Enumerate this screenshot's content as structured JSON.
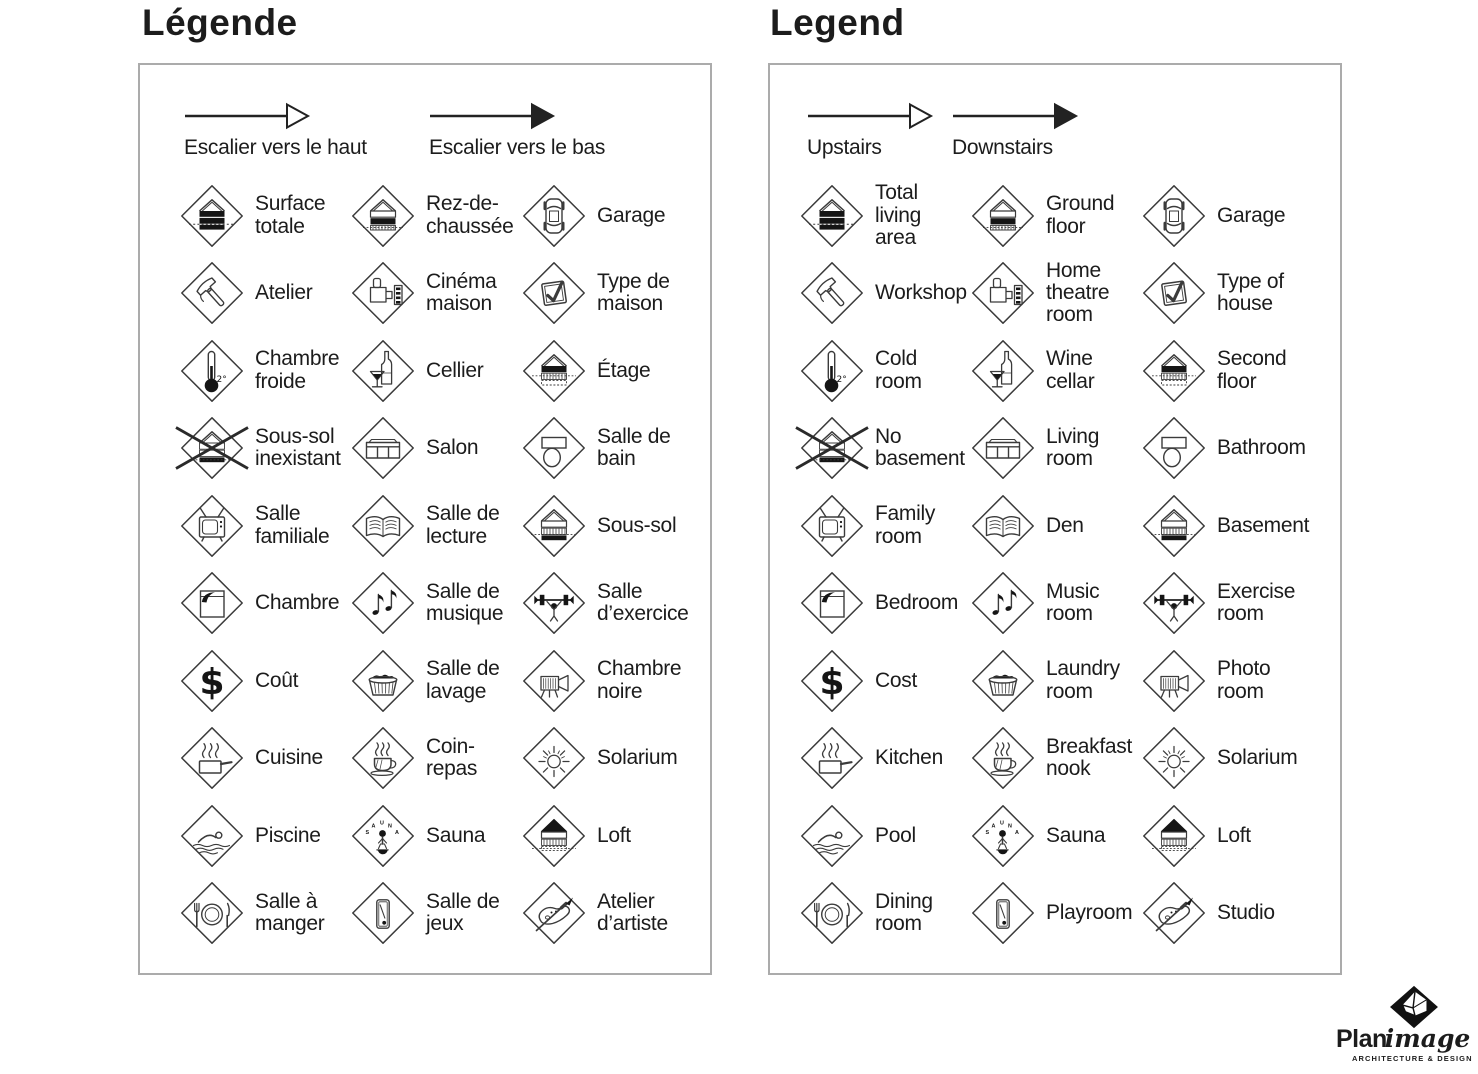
{
  "colors": {
    "ink": "#1c1c1c",
    "icon_stroke": "#3b3b3b",
    "icon_fill": "#151515",
    "panel_border": "#ababab",
    "background": "#ffffff"
  },
  "panels": [
    {
      "id": "legende",
      "title": "Légende",
      "arrows": [
        {
          "label": "Escalier vers le haut",
          "style": "open"
        },
        {
          "label": "Escalier vers le bas",
          "style": "solid"
        }
      ],
      "items": [
        {
          "icon": "total-area",
          "label": "Surface\ntotale"
        },
        {
          "icon": "ground-floor",
          "label": "Rez-de-\nchaussée"
        },
        {
          "icon": "garage",
          "label": "Garage"
        },
        {
          "icon": "workshop",
          "label": "Atelier"
        },
        {
          "icon": "home-theatre",
          "label": "Cinéma\nmaison"
        },
        {
          "icon": "house-type",
          "label": "Type de\nmaison"
        },
        {
          "icon": "cold-room",
          "label": "Chambre\nfroide"
        },
        {
          "icon": "wine-cellar",
          "label": "Cellier"
        },
        {
          "icon": "second-floor",
          "label": "Étage"
        },
        {
          "icon": "no-basement",
          "label": "Sous-sol\ninexistant"
        },
        {
          "icon": "living-room",
          "label": "Salon"
        },
        {
          "icon": "bathroom",
          "label": "Salle de\nbain"
        },
        {
          "icon": "family-room",
          "label": "Salle\nfamiliale"
        },
        {
          "icon": "den",
          "label": "Salle de\nlecture"
        },
        {
          "icon": "basement",
          "label": "Sous-sol"
        },
        {
          "icon": "bedroom",
          "label": "Chambre"
        },
        {
          "icon": "music-room",
          "label": "Salle de\nmusique"
        },
        {
          "icon": "exercise-room",
          "label": "Salle\nd’exercice"
        },
        {
          "icon": "cost",
          "label": "Coût"
        },
        {
          "icon": "laundry-room",
          "label": "Salle de\nlavage"
        },
        {
          "icon": "photo-room",
          "label": "Chambre\nnoire"
        },
        {
          "icon": "kitchen",
          "label": "Cuisine"
        },
        {
          "icon": "breakfast-nook",
          "label": "Coin-\nrepas"
        },
        {
          "icon": "solarium",
          "label": "Solarium"
        },
        {
          "icon": "pool",
          "label": "Piscine"
        },
        {
          "icon": "sauna",
          "label": "Sauna"
        },
        {
          "icon": "loft",
          "label": "Loft"
        },
        {
          "icon": "dining-room",
          "label": "Salle à\nmanger"
        },
        {
          "icon": "playroom",
          "label": "Salle de\njeux"
        },
        {
          "icon": "studio",
          "label": "Atelier\nd’artiste"
        }
      ]
    },
    {
      "id": "legend",
      "title": "Legend",
      "arrows": [
        {
          "label": "Upstairs",
          "style": "open"
        },
        {
          "label": "Downstairs",
          "style": "solid"
        }
      ],
      "items": [
        {
          "icon": "total-area",
          "label": "Total\nliving\narea"
        },
        {
          "icon": "ground-floor",
          "label": "Ground\nfloor"
        },
        {
          "icon": "garage",
          "label": "Garage"
        },
        {
          "icon": "workshop",
          "label": "Workshop"
        },
        {
          "icon": "home-theatre",
          "label": "Home\ntheatre\nroom"
        },
        {
          "icon": "house-type",
          "label": "Type of\nhouse"
        },
        {
          "icon": "cold-room",
          "label": "Cold\nroom"
        },
        {
          "icon": "wine-cellar",
          "label": "Wine\ncellar"
        },
        {
          "icon": "second-floor",
          "label": "Second\nfloor"
        },
        {
          "icon": "no-basement",
          "label": "No\nbasement"
        },
        {
          "icon": "living-room",
          "label": "Living\nroom"
        },
        {
          "icon": "bathroom",
          "label": "Bathroom"
        },
        {
          "icon": "family-room",
          "label": "Family\nroom"
        },
        {
          "icon": "den",
          "label": "Den"
        },
        {
          "icon": "basement",
          "label": "Basement"
        },
        {
          "icon": "bedroom",
          "label": "Bedroom"
        },
        {
          "icon": "music-room",
          "label": "Music\nroom"
        },
        {
          "icon": "exercise-room",
          "label": "Exercise\nroom"
        },
        {
          "icon": "cost",
          "label": "Cost"
        },
        {
          "icon": "laundry-room",
          "label": "Laundry\nroom"
        },
        {
          "icon": "photo-room",
          "label": "Photo\nroom"
        },
        {
          "icon": "kitchen",
          "label": "Kitchen"
        },
        {
          "icon": "breakfast-nook",
          "label": "Breakfast\nnook"
        },
        {
          "icon": "solarium",
          "label": "Solarium"
        },
        {
          "icon": "pool",
          "label": "Pool"
        },
        {
          "icon": "sauna",
          "label": "Sauna"
        },
        {
          "icon": "loft",
          "label": "Loft"
        },
        {
          "icon": "dining-room",
          "label": "Dining\nroom"
        },
        {
          "icon": "playroom",
          "label": "Playroom"
        },
        {
          "icon": "studio",
          "label": "Studio"
        }
      ]
    }
  ],
  "logo": {
    "plan": "Plan",
    "image": "image",
    "tagline": "ARCHITECTURE & DESIGN"
  }
}
